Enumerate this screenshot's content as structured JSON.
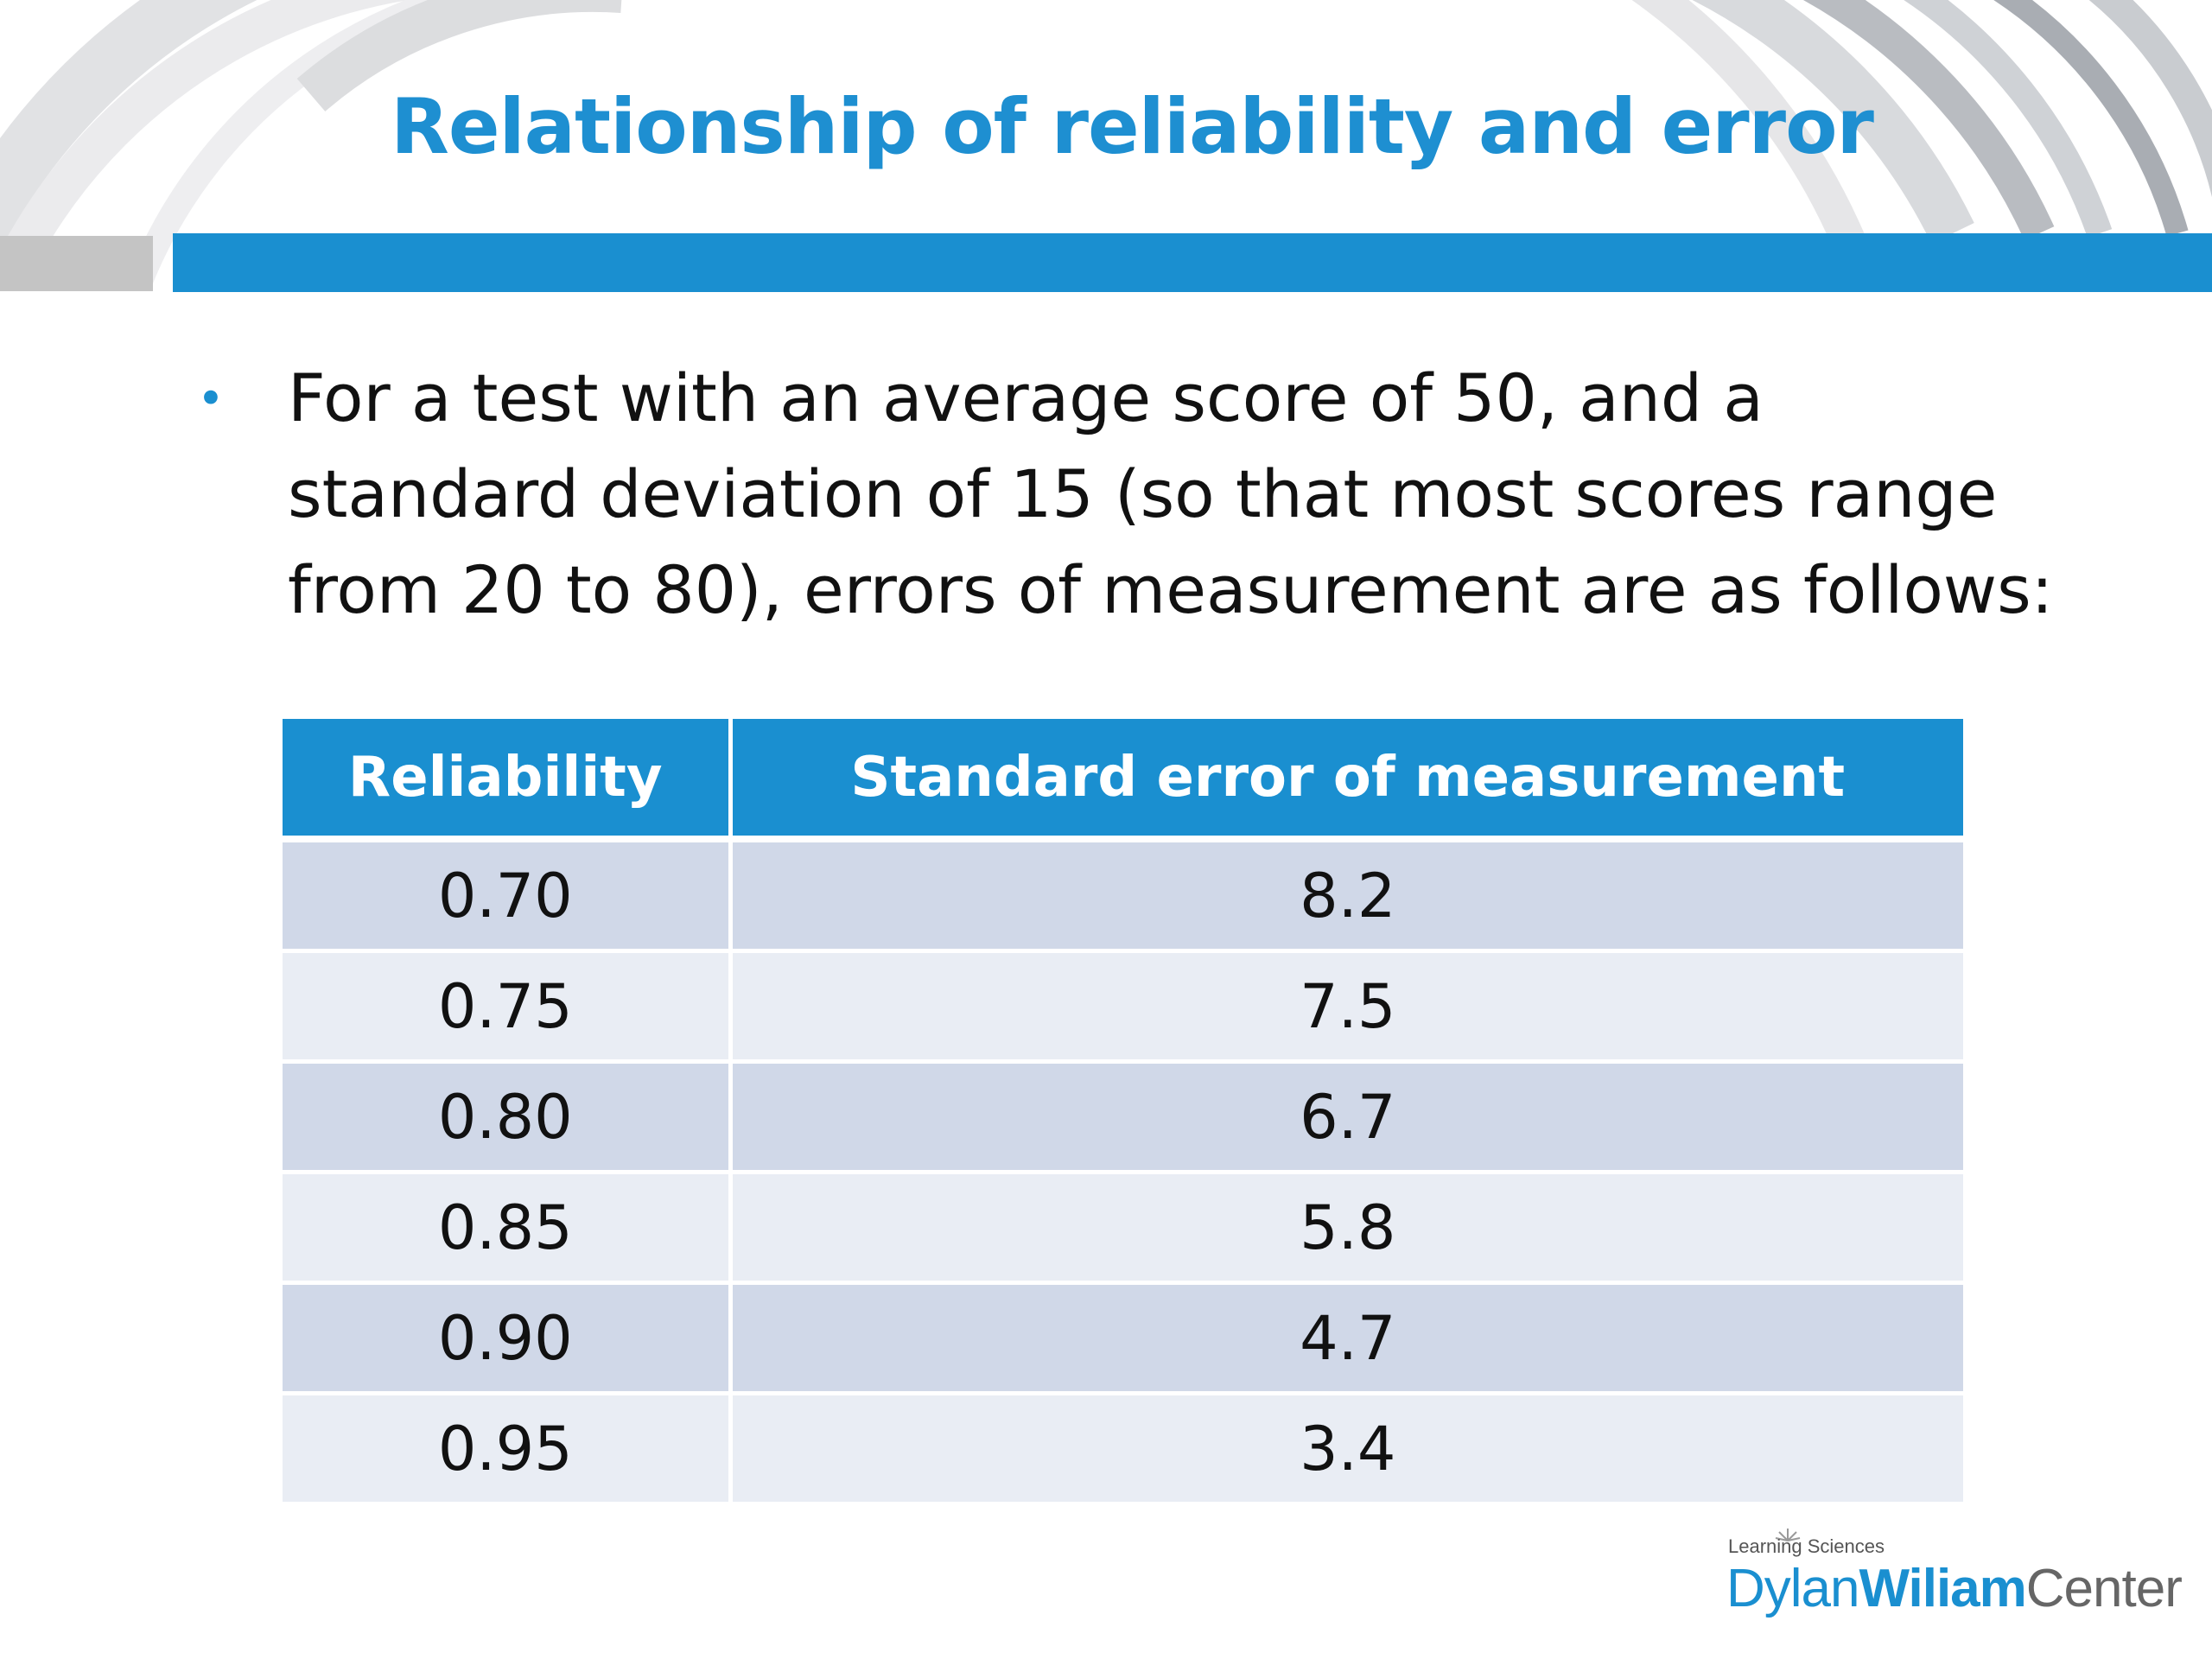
{
  "slide": {
    "title": "Relationship of reliability and error",
    "bullet_text": "For a test with an average score of 50, and a standard deviation of 15 (so that most scores range from 20 to 80), errors of measurement are as follows:",
    "colors": {
      "accent": "#1a8fd0",
      "title": "#1e8fd1",
      "row_dark": "#d0d8e8",
      "row_light": "#e9edf4"
    }
  },
  "table": {
    "headers": [
      "Reliability",
      "Standard error of measurement"
    ],
    "rows": [
      [
        "0.70",
        "8.2"
      ],
      [
        "0.75",
        "7.5"
      ],
      [
        "0.80",
        "6.7"
      ],
      [
        "0.85",
        "5.8"
      ],
      [
        "0.90",
        "4.7"
      ],
      [
        "0.95",
        "3.4"
      ]
    ]
  },
  "logo": {
    "top_line": "Learning Sciences",
    "part1": "Dylan",
    "part2": "Wiliam",
    "part3": "Center"
  }
}
